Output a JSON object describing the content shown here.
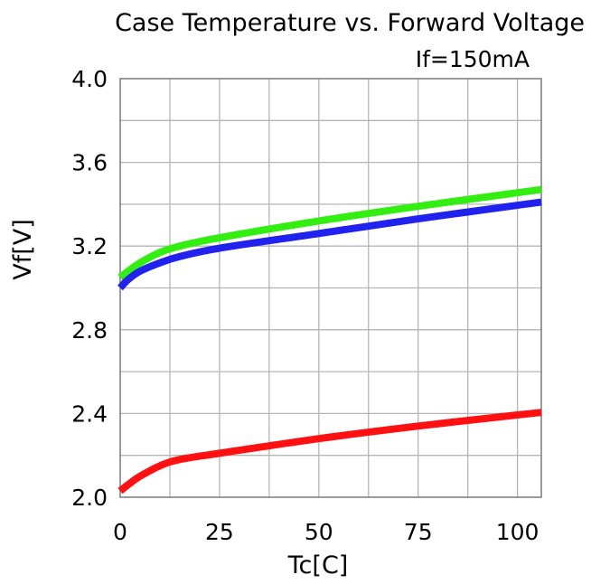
{
  "chart_data": {
    "type": "line",
    "title": "Case Temperature vs. Forward Voltage",
    "subtitle": "If=150mA",
    "xlabel": "Tc[C]",
    "ylabel": "Vf[V]",
    "xlim": [
      0,
      106
    ],
    "ylim": [
      2.0,
      4.0
    ],
    "x_ticks": [
      0,
      25,
      50,
      75,
      100
    ],
    "y_ticks": [
      2.0,
      2.4,
      2.8,
      3.2,
      3.6,
      4.0
    ],
    "y_tick_labels": [
      "2.0",
      "2.4",
      "2.8",
      "3.2",
      "3.6",
      "4.0"
    ],
    "grid": {
      "x_step": 12.5,
      "y_step": 0.2
    },
    "x": [
      0,
      2,
      5,
      10,
      15,
      25,
      50,
      75,
      100,
      106
    ],
    "series": [
      {
        "color": "#33ee11",
        "values": [
          3.05,
          3.08,
          3.12,
          3.17,
          3.2,
          3.24,
          3.32,
          3.39,
          3.455,
          3.47
        ]
      },
      {
        "color": "#2222ee",
        "values": [
          3.0,
          3.04,
          3.08,
          3.12,
          3.15,
          3.19,
          3.26,
          3.33,
          3.395,
          3.41
        ]
      },
      {
        "color": "#ff1111",
        "values": [
          2.03,
          2.06,
          2.1,
          2.15,
          2.18,
          2.21,
          2.28,
          2.34,
          2.393,
          2.405
        ]
      }
    ]
  }
}
